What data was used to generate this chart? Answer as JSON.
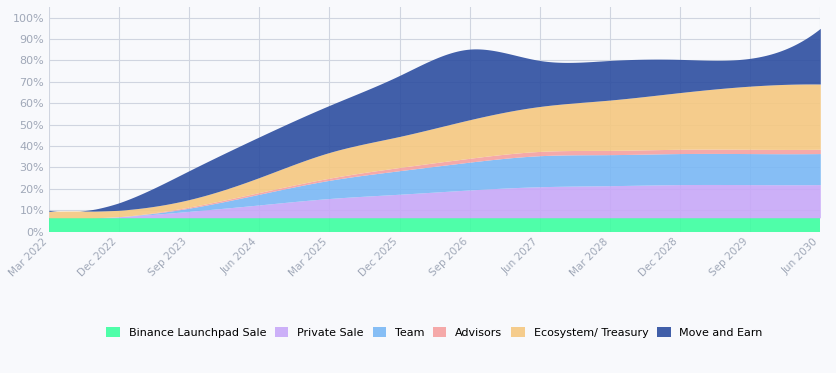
{
  "x_labels": [
    "Mar 2022",
    "Dec 2022",
    "Sep 2023",
    "Jun 2024",
    "Mar 2025",
    "Dec 2025",
    "Sep 2026",
    "Jun 2027",
    "Mar 2028",
    "Dec 2028",
    "Sep 2029",
    "Jun 2030"
  ],
  "series": {
    "Binance Launchpad Sale": [
      6.5,
      6.5,
      6.5,
      6.5,
      6.5,
      6.5,
      6.5,
      6.5,
      6.5,
      6.5,
      6.5,
      6.5
    ],
    "Private Sale": [
      0.0,
      0.5,
      3.0,
      6.0,
      9.0,
      11.0,
      13.0,
      14.5,
      15.0,
      15.5,
      15.5,
      15.5
    ],
    "Team": [
      0.0,
      0.0,
      1.5,
      5.0,
      8.5,
      11.0,
      13.0,
      14.5,
      14.5,
      14.5,
      14.5,
      14.5
    ],
    "Advisors": [
      0.0,
      0.0,
      0.5,
      0.8,
      1.0,
      1.5,
      1.8,
      2.0,
      2.0,
      2.0,
      2.0,
      2.0
    ],
    "Ecosystem/ Treasury": [
      3.0,
      3.0,
      3.5,
      7.0,
      12.0,
      14.5,
      18.0,
      21.0,
      23.5,
      26.5,
      29.5,
      30.5
    ],
    "Move and Earn": [
      0.5,
      3.5,
      13.5,
      19.0,
      22.0,
      28.5,
      33.0,
      21.5,
      18.5,
      15.5,
      13.0,
      26.0
    ]
  },
  "colors": {
    "Binance Launchpad Sale": "#3dffa0",
    "Private Sale": "#c8a8f8",
    "Team": "#7ab8f5",
    "Advisors": "#f5a0a0",
    "Ecosystem/ Treasury": "#f5c880",
    "Move and Earn": "#2d4ea0"
  },
  "background_color": "#f8f9fc",
  "grid_color": "#d0d5e0",
  "ylim": [
    0,
    105
  ],
  "yticks": [
    0,
    10,
    20,
    30,
    40,
    50,
    60,
    70,
    80,
    90,
    100
  ],
  "tick_color": "#a0a8b8",
  "figsize": [
    8.36,
    3.73
  ],
  "dpi": 100
}
